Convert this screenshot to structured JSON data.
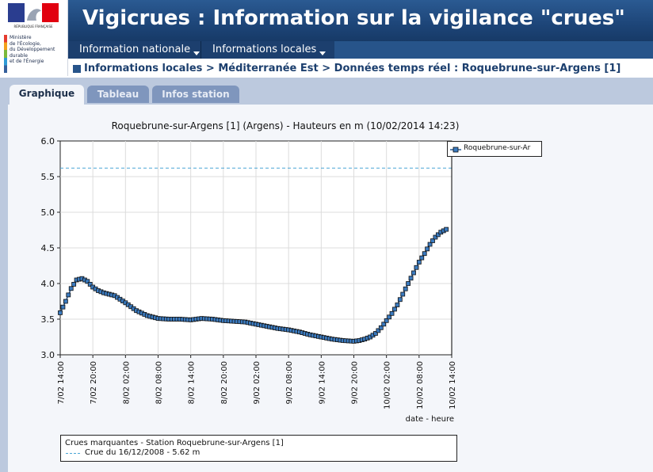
{
  "header": {
    "title": "Vigicrues : Information sur la vigilance \"crues\"",
    "logo_text": "RÉPUBLIQUE FRANÇAISE",
    "ministry_lines": [
      "Ministère",
      "de l'Écologie,",
      "du Développement",
      "durable",
      "et de l'Énergie"
    ]
  },
  "nav": {
    "items": [
      {
        "label": "Information nationale"
      },
      {
        "label": "Informations locales"
      }
    ]
  },
  "breadcrumb": "Informations locales > Méditerranée Est > Données temps réel : Roquebrune-sur-Argens [1]",
  "tabs": [
    {
      "label": "Graphique",
      "active": true
    },
    {
      "label": "Tableau",
      "active": false
    },
    {
      "label": "Infos station",
      "active": false
    }
  ],
  "colors": {
    "banner": "#1d4578",
    "series": "#2b5a92",
    "threshold": "#4aa6d6",
    "tabs_band": "#bcc9de"
  },
  "chart_data": {
    "type": "line",
    "title": "Roquebrune-sur-Argens [1] (Argens) - Hauteurs en m (10/02/2014 14:23)",
    "xlabel": "date - heure",
    "ylabel": "",
    "x_ticks": [
      "7/02 14:00",
      "7/02 20:00",
      "8/02 02:00",
      "8/02 08:00",
      "8/02 14:00",
      "8/02 20:00",
      "9/02 02:00",
      "9/02 08:00",
      "9/02 14:00",
      "9/02 20:00",
      "10/02 02:00",
      "10/02 08:00",
      "10/02 14:00"
    ],
    "xlim_hours": [
      0,
      72
    ],
    "ylim": [
      3.0,
      6.0
    ],
    "y_ticks": [
      "3.0",
      "3.5",
      "4.0",
      "4.5",
      "5.0",
      "5.5",
      "6.0"
    ],
    "grid": true,
    "legend_position": "top-right",
    "series": [
      {
        "name": "Roquebrune-sur-Ar",
        "hours": [
          0,
          1,
          2,
          3,
          4,
          5,
          6,
          7,
          8,
          9,
          10,
          11,
          12,
          14,
          16,
          18,
          20,
          22,
          24,
          26,
          28,
          30,
          32,
          34,
          36,
          38,
          40,
          42,
          44,
          46,
          48,
          50,
          52,
          54,
          55,
          56,
          57,
          58,
          59,
          60,
          61,
          62,
          63,
          64,
          65,
          66,
          67,
          68,
          69,
          70,
          71
        ],
        "values": [
          3.59,
          3.75,
          3.93,
          4.05,
          4.07,
          4.03,
          3.95,
          3.9,
          3.87,
          3.85,
          3.83,
          3.78,
          3.73,
          3.62,
          3.55,
          3.51,
          3.5,
          3.5,
          3.49,
          3.51,
          3.5,
          3.48,
          3.47,
          3.46,
          3.43,
          3.4,
          3.37,
          3.35,
          3.32,
          3.28,
          3.25,
          3.22,
          3.2,
          3.19,
          3.2,
          3.22,
          3.25,
          3.3,
          3.38,
          3.48,
          3.58,
          3.7,
          3.85,
          4.0,
          4.15,
          4.3,
          4.42,
          4.55,
          4.65,
          4.72,
          4.76
        ]
      }
    ],
    "thresholds": [
      {
        "label": "Crue du 16/12/2008 - 5.62 m",
        "value": 5.62
      }
    ]
  },
  "crues_box": {
    "title": "Crues marquantes - Station Roquebrune-sur-Argens [1]",
    "entry": "Crue du 16/12/2008 - 5.62 m"
  }
}
